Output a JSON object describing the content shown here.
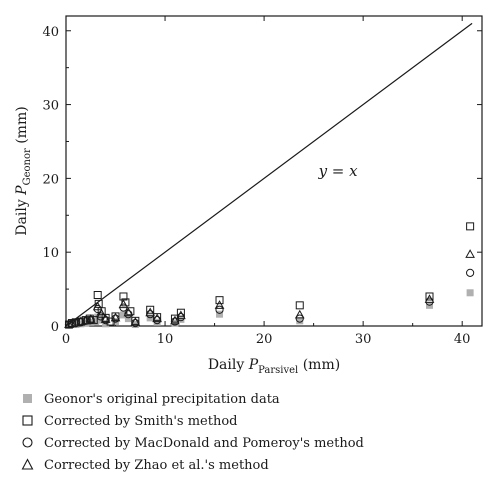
{
  "chart_data": {
    "type": "scatter",
    "ylabel_prefix": "Daily ",
    "ylabel_var": "P",
    "ylabel_sub": "Geonor",
    "ylabel_suffix": " (mm)",
    "xlabel_prefix": "Daily ",
    "xlabel_var": "P",
    "xlabel_sub": "Parsivel",
    "xlabel_suffix": " (mm)",
    "xlim": [
      0,
      42
    ],
    "ylim": [
      0,
      42
    ],
    "xticks": [
      0,
      10,
      20,
      30,
      40
    ],
    "yticks": [
      0,
      10,
      20,
      30,
      40
    ],
    "reference_line": {
      "label": "y = x",
      "label_x": 25.5,
      "label_y": 20.3,
      "from": [
        0,
        0
      ],
      "to": [
        41,
        41
      ]
    },
    "legend_position": "bottom",
    "series": [
      {
        "name": "Geonor's original precipitation data",
        "marker": "filled-square",
        "color": "#b0b0b0",
        "points": [
          [
            0.3,
            0.1
          ],
          [
            0.6,
            0.2
          ],
          [
            1.0,
            0.2
          ],
          [
            1.5,
            0.3
          ],
          [
            2.0,
            0.4
          ],
          [
            2.5,
            0.5
          ],
          [
            3.0,
            0.6
          ],
          [
            3.2,
            1.2
          ],
          [
            3.5,
            0.8
          ],
          [
            4.0,
            0.3
          ],
          [
            5.0,
            0.6
          ],
          [
            5.8,
            1.5
          ],
          [
            6.3,
            1.0
          ],
          [
            7.0,
            0.2
          ],
          [
            8.5,
            1.1
          ],
          [
            9.2,
            0.5
          ],
          [
            11.0,
            0.4
          ],
          [
            11.6,
            0.9
          ],
          [
            15.5,
            1.6
          ],
          [
            23.6,
            0.7
          ],
          [
            36.7,
            2.8
          ],
          [
            40.8,
            4.5
          ]
        ]
      },
      {
        "name": "Corrected by Smith's method",
        "marker": "open-square",
        "color": "#1a1a1a",
        "points": [
          [
            0.3,
            0.2
          ],
          [
            0.6,
            0.4
          ],
          [
            1.0,
            0.5
          ],
          [
            1.5,
            0.6
          ],
          [
            2.0,
            0.8
          ],
          [
            2.4,
            1.0
          ],
          [
            2.8,
            0.8
          ],
          [
            3.2,
            4.2
          ],
          [
            3.3,
            3.0
          ],
          [
            3.6,
            2.0
          ],
          [
            4.0,
            1.1
          ],
          [
            4.5,
            0.6
          ],
          [
            5.0,
            1.3
          ],
          [
            5.8,
            4.0
          ],
          [
            6.0,
            3.2
          ],
          [
            6.5,
            2.0
          ],
          [
            7.0,
            0.7
          ],
          [
            8.5,
            2.2
          ],
          [
            9.2,
            1.2
          ],
          [
            11.0,
            1.0
          ],
          [
            11.6,
            1.8
          ],
          [
            15.5,
            3.5
          ],
          [
            23.6,
            2.8
          ],
          [
            36.7,
            4.0
          ],
          [
            40.8,
            13.5
          ]
        ]
      },
      {
        "name": "Corrected by MacDonald and Pomeroy's method",
        "marker": "open-circle",
        "color": "#1a1a1a",
        "points": [
          [
            0.3,
            0.2
          ],
          [
            0.6,
            0.3
          ],
          [
            1.0,
            0.4
          ],
          [
            1.5,
            0.5
          ],
          [
            2.0,
            0.7
          ],
          [
            2.5,
            0.8
          ],
          [
            3.2,
            2.3
          ],
          [
            3.5,
            1.3
          ],
          [
            4.0,
            0.8
          ],
          [
            5.0,
            1.0
          ],
          [
            5.8,
            2.5
          ],
          [
            6.3,
            1.6
          ],
          [
            7.0,
            0.4
          ],
          [
            8.5,
            1.6
          ],
          [
            9.2,
            0.8
          ],
          [
            11.0,
            0.6
          ],
          [
            11.6,
            1.2
          ],
          [
            15.5,
            2.2
          ],
          [
            23.6,
            1.0
          ],
          [
            36.7,
            3.3
          ],
          [
            40.8,
            7.2
          ]
        ]
      },
      {
        "name": "Corrected by Zhao et al.'s method",
        "marker": "open-triangle",
        "color": "#1a1a1a",
        "points": [
          [
            0.3,
            0.2
          ],
          [
            0.6,
            0.3
          ],
          [
            1.0,
            0.4
          ],
          [
            1.5,
            0.6
          ],
          [
            2.0,
            0.7
          ],
          [
            2.5,
            0.9
          ],
          [
            3.2,
            2.6
          ],
          [
            3.6,
            1.6
          ],
          [
            4.0,
            0.9
          ],
          [
            5.0,
            1.1
          ],
          [
            5.8,
            2.9
          ],
          [
            6.3,
            1.8
          ],
          [
            7.0,
            0.5
          ],
          [
            8.5,
            1.8
          ],
          [
            9.2,
            1.0
          ],
          [
            11.0,
            0.7
          ],
          [
            11.6,
            1.4
          ],
          [
            15.5,
            2.8
          ],
          [
            23.6,
            1.5
          ],
          [
            36.7,
            3.6
          ],
          [
            40.8,
            9.7
          ]
        ]
      }
    ]
  }
}
